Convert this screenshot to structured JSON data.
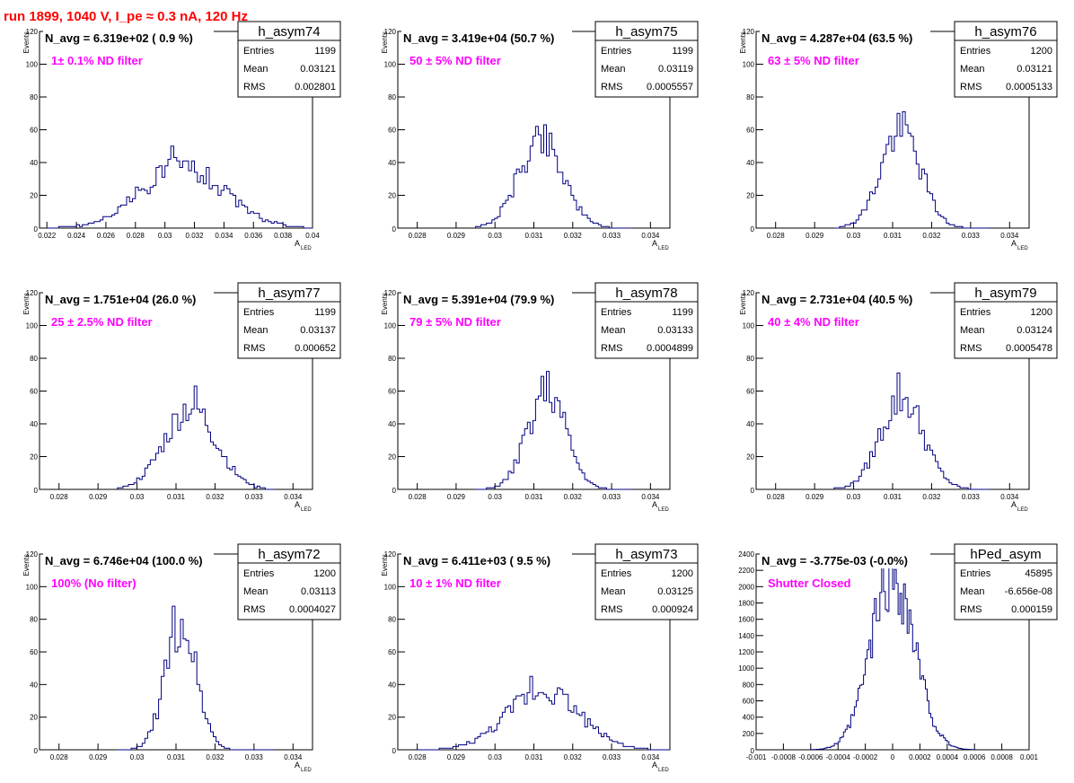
{
  "page_title": "run 1899,  1040 V, I_pe ≈ 0.3 nA, 120 Hz",
  "colors": {
    "histogram": "#000080",
    "annotation": "#ff00ff",
    "title": "#ff0000",
    "frame": "#000000"
  },
  "chart_data": [
    {
      "type": "histogram",
      "name": "h_asym74",
      "navg": "N_avg = 6.319e+02 ( 0.9 %)",
      "label": "1± 0.1% ND filter",
      "stats": {
        "entries": "1199",
        "mean": "0.03121",
        "rms": "0.002801"
      },
      "xlim": [
        0.0215,
        0.04
      ],
      "ylim": [
        0,
        120
      ],
      "xticks": [
        "0.022",
        "0.024",
        "0.026",
        "0.028",
        "0.03",
        "0.032",
        "0.034",
        "0.036",
        "0.038",
        "0.04"
      ],
      "yticks": [
        "20",
        "40",
        "60",
        "80",
        "100",
        "120"
      ],
      "xlabel": "A",
      "xlabel_sub": "LED",
      "ylabel": "Events",
      "mean": 0.03121,
      "sigma": 0.0028,
      "peak": 38,
      "x_from": 0.022,
      "x_to": 0.04,
      "nbins": 90,
      "seed": 74,
      "forced_max": 50
    },
    {
      "type": "histogram",
      "name": "h_asym75",
      "navg": "N_avg = 3.419e+04 (50.7 %)",
      "label": "50 ± 5% ND filter",
      "stats": {
        "entries": "1199",
        "mean": "0.03119",
        "rms": "0.0005557"
      },
      "xlim": [
        0.0275,
        0.0345
      ],
      "ylim": [
        0,
        120
      ],
      "xticks": [
        "0.028",
        "0.029",
        "0.03",
        "0.031",
        "0.032",
        "0.033",
        "0.034"
      ],
      "yticks": [
        "20",
        "40",
        "60",
        "80",
        "100",
        "120"
      ],
      "xlabel": "A",
      "xlabel_sub": "LED",
      "ylabel": "Events",
      "mean": 0.03119,
      "sigma": 0.00056,
      "peak": 56,
      "x_from": 0.0295,
      "x_to": 0.0335,
      "nbins": 57,
      "seed": 75,
      "forced_max": 62
    },
    {
      "type": "histogram",
      "name": "h_asym76",
      "navg": "N_avg = 4.287e+04 (63.5 %)",
      "label": "63 ± 5% ND filter",
      "stats": {
        "entries": "1200",
        "mean": "0.03121",
        "rms": "0.0005133"
      },
      "xlim": [
        0.0275,
        0.0345
      ],
      "ylim": [
        0,
        120
      ],
      "xticks": [
        "0.028",
        "0.029",
        "0.03",
        "0.031",
        "0.032",
        "0.033",
        "0.034"
      ],
      "yticks": [
        "20",
        "40",
        "60",
        "80",
        "100",
        "120"
      ],
      "xlabel": "A",
      "xlabel_sub": "LED",
      "ylabel": "Events",
      "mean": 0.03121,
      "sigma": 0.00051,
      "peak": 60,
      "x_from": 0.0295,
      "x_to": 0.0335,
      "nbins": 57,
      "seed": 76,
      "forced_max": 71
    },
    {
      "type": "histogram",
      "name": "h_asym77",
      "navg": "N_avg = 1.751e+04 (26.0 %)",
      "label": "25 ± 2.5% ND filter",
      "stats": {
        "entries": "1199",
        "mean": "0.03137",
        "rms": "0.000652"
      },
      "xlim": [
        0.0275,
        0.0345
      ],
      "ylim": [
        0,
        120
      ],
      "xticks": [
        "0.028",
        "0.029",
        "0.03",
        "0.031",
        "0.032",
        "0.033",
        "0.034"
      ],
      "yticks": [
        "20",
        "40",
        "60",
        "80",
        "100",
        "120"
      ],
      "xlabel": "A",
      "xlabel_sub": "LED",
      "ylabel": "Events",
      "mean": 0.03137,
      "sigma": 0.00065,
      "peak": 50,
      "x_from": 0.0295,
      "x_to": 0.0335,
      "nbins": 57,
      "seed": 77,
      "forced_max": 63
    },
    {
      "type": "histogram",
      "name": "h_asym78",
      "navg": "N_avg = 5.391e+04 (79.9 %)",
      "label": "79 ± 5% ND filter",
      "stats": {
        "entries": "1199",
        "mean": "0.03133",
        "rms": "0.0004899"
      },
      "xlim": [
        0.0275,
        0.0345
      ],
      "ylim": [
        0,
        120
      ],
      "xticks": [
        "0.028",
        "0.029",
        "0.03",
        "0.031",
        "0.032",
        "0.033",
        "0.034"
      ],
      "yticks": [
        "20",
        "40",
        "60",
        "80",
        "100",
        "120"
      ],
      "xlabel": "A",
      "xlabel_sub": "LED",
      "ylabel": "Events",
      "mean": 0.03133,
      "sigma": 0.00049,
      "peak": 60,
      "x_from": 0.0295,
      "x_to": 0.0335,
      "nbins": 57,
      "seed": 78,
      "forced_max": 72
    },
    {
      "type": "histogram",
      "name": "h_asym79",
      "navg": "N_avg = 2.731e+04 (40.5 %)",
      "label": "40 ± 4% ND filter",
      "stats": {
        "entries": "1200",
        "mean": "0.03124",
        "rms": "0.0005478"
      },
      "xlim": [
        0.0275,
        0.0345
      ],
      "ylim": [
        0,
        120
      ],
      "xticks": [
        "0.028",
        "0.029",
        "0.03",
        "0.031",
        "0.032",
        "0.033",
        "0.034"
      ],
      "yticks": [
        "20",
        "40",
        "60",
        "80",
        "100",
        "120"
      ],
      "xlabel": "A",
      "xlabel_sub": "LED",
      "ylabel": "Events",
      "mean": 0.03124,
      "sigma": 0.00055,
      "peak": 56,
      "x_from": 0.0295,
      "x_to": 0.0335,
      "nbins": 57,
      "seed": 79,
      "forced_max": 71
    },
    {
      "type": "histogram",
      "name": "h_asym72",
      "navg": "N_avg = 6.746e+04 (100.0 %)",
      "label": "100% (No filter)",
      "stats": {
        "entries": "1200",
        "mean": "0.03113",
        "rms": "0.0004027"
      },
      "xlim": [
        0.0275,
        0.0345
      ],
      "ylim": [
        0,
        120
      ],
      "xticks": [
        "0.028",
        "0.029",
        "0.03",
        "0.031",
        "0.032",
        "0.033",
        "0.034"
      ],
      "yticks": [
        "20",
        "40",
        "60",
        "80",
        "100",
        "120"
      ],
      "xlabel": "A",
      "xlabel_sub": "LED",
      "ylabel": "Events",
      "mean": 0.03113,
      "sigma": 0.0004,
      "peak": 78,
      "x_from": 0.0295,
      "x_to": 0.0335,
      "nbins": 57,
      "seed": 72,
      "forced_max": 88
    },
    {
      "type": "histogram",
      "name": "h_asym73",
      "navg": "N_avg = 6.411e+03 ( 9.5 %)",
      "label": "10 ± 1% ND filter",
      "stats": {
        "entries": "1200",
        "mean": "0.03125",
        "rms": "0.000924"
      },
      "xlim": [
        0.0275,
        0.0345
      ],
      "ylim": [
        0,
        120
      ],
      "xticks": [
        "0.028",
        "0.029",
        "0.03",
        "0.031",
        "0.032",
        "0.033",
        "0.034"
      ],
      "yticks": [
        "20",
        "40",
        "60",
        "80",
        "100",
        "120"
      ],
      "xlabel": "A",
      "xlabel_sub": "LED",
      "ylabel": "Events",
      "mean": 0.03125,
      "sigma": 0.00092,
      "peak": 37,
      "x_from": 0.028,
      "x_to": 0.0345,
      "nbins": 92,
      "seed": 73,
      "forced_max": 45
    },
    {
      "type": "histogram",
      "name": "hPed_asym",
      "navg": "N_avg = -3.775e-03 (-0.0%)",
      "label": "Shutter Closed",
      "stats": {
        "entries": "45895",
        "mean": "-6.656e-08",
        "rms": "0.000159"
      },
      "xlim": [
        -0.001,
        0.001
      ],
      "ylim": [
        0,
        2400
      ],
      "xticks": [
        "-0.001",
        "-0.0008",
        "-0.0006",
        "-0.0004",
        "-0.0002",
        "0",
        "0.0002",
        "0.0004",
        "0.0006",
        "0.0008",
        "0.001"
      ],
      "yticks": [
        "200",
        "400",
        "600",
        "800",
        "1000",
        "1200",
        "1400",
        "1600",
        "1800",
        "2000",
        "2200",
        "2400"
      ],
      "xlabel": "",
      "xlabel_sub": "",
      "ylabel": "",
      "mean": 0.0,
      "sigma": 0.000159,
      "peak": 2150,
      "x_from": -0.0006,
      "x_to": 0.0006,
      "nbins": 90,
      "seed": 99,
      "forced_max": 2230
    }
  ]
}
